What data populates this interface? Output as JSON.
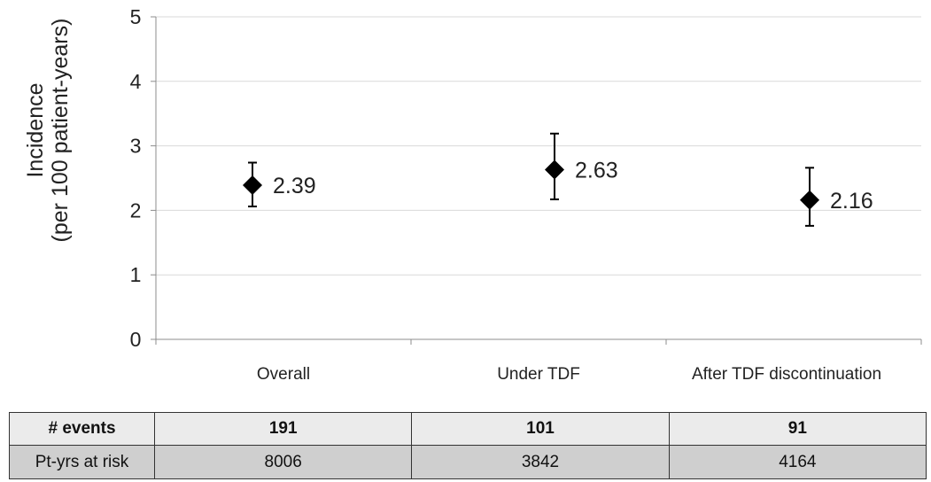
{
  "chart_data": {
    "type": "scatter",
    "ylabel": [
      "Incidence",
      "(per 100 patient-years)"
    ],
    "ylim": [
      0,
      5
    ],
    "yticks": [
      0,
      1,
      2,
      3,
      4,
      5
    ],
    "grid": true,
    "categories": [
      "Overall",
      "Under TDF",
      "After TDF discontinuation"
    ],
    "values": [
      2.39,
      2.63,
      2.16
    ],
    "ci_lower": [
      2.06,
      2.17,
      1.76
    ],
    "ci_upper": [
      2.74,
      3.19,
      2.66
    ],
    "data_labels": [
      "2.39",
      "2.63",
      "2.16"
    ]
  },
  "table": {
    "rows": [
      {
        "label": "# events",
        "values": [
          "191",
          "101",
          "91"
        ]
      },
      {
        "label": "Pt-yrs at risk",
        "values": [
          "8006",
          "3842",
          "4164"
        ]
      }
    ]
  }
}
